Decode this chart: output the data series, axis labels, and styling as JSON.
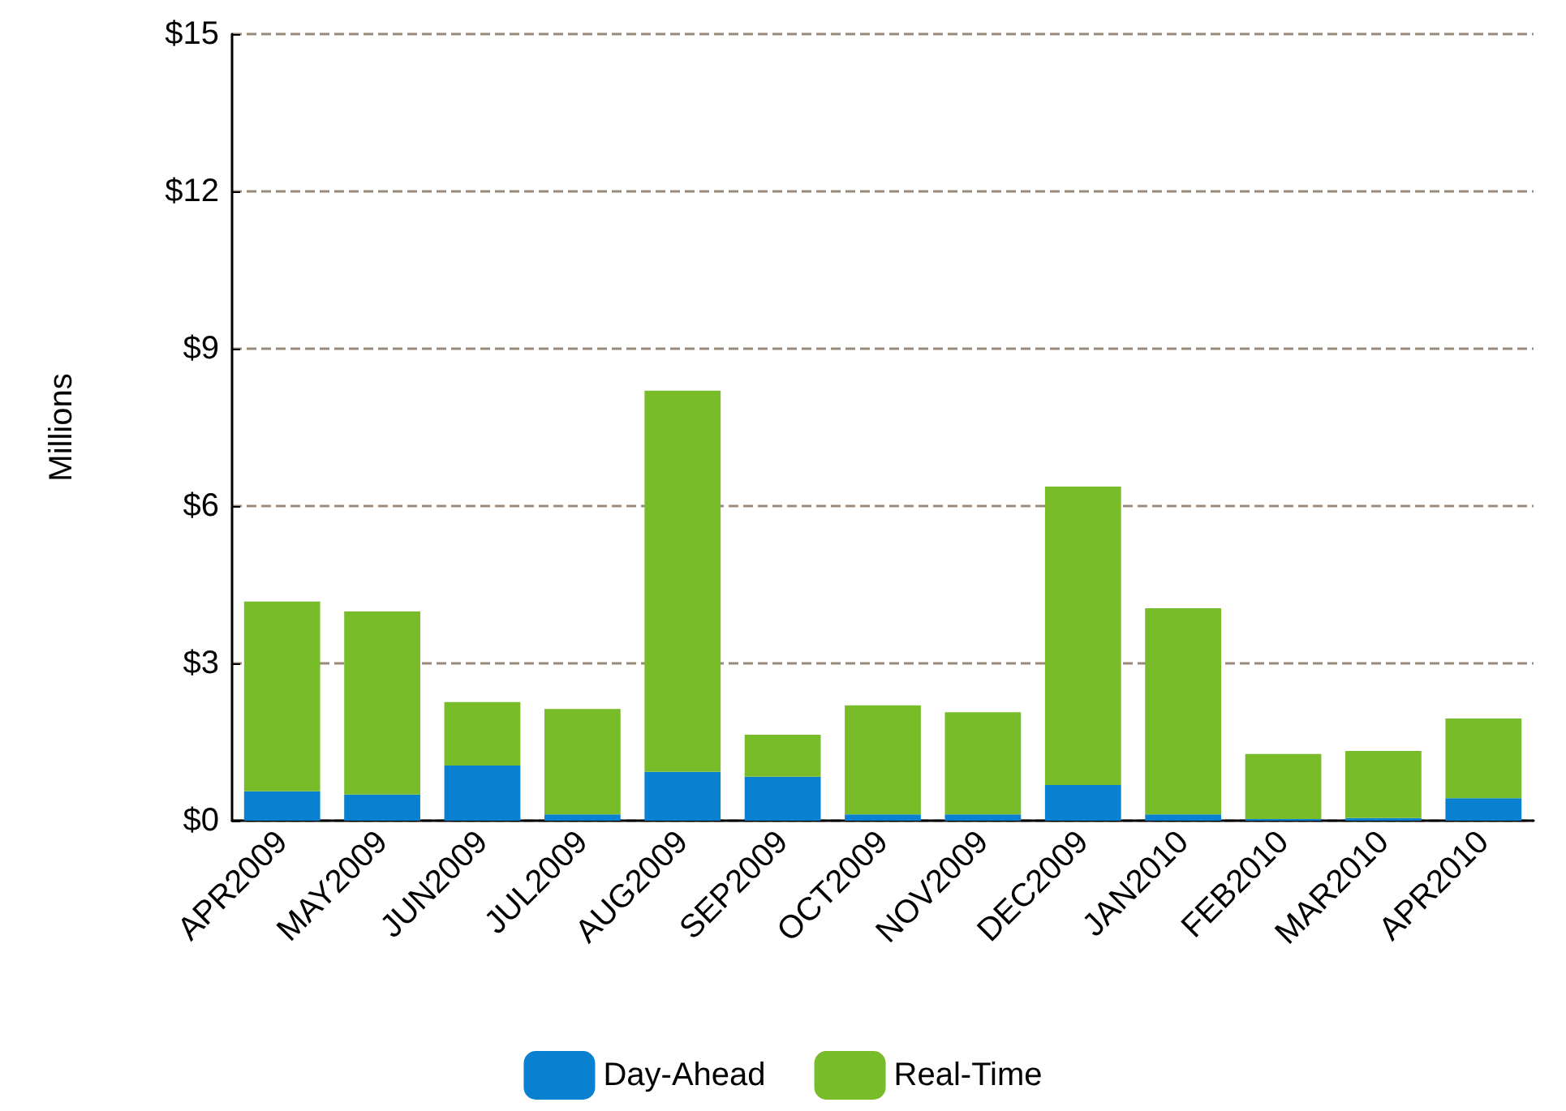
{
  "chart_data": {
    "type": "bar",
    "stacked": true,
    "ylabel": "Millions",
    "categories": [
      "APR2009",
      "MAY2009",
      "JUN2009",
      "JUL2009",
      "AUG2009",
      "SEP2009",
      "OCT2009",
      "NOV2009",
      "DEC2009",
      "JAN2010",
      "FEB2010",
      "MAR2010",
      "APR2010"
    ],
    "series": [
      {
        "name": "Day-Ahead",
        "color": "#0a80d0",
        "values": [
          0.56,
          0.5,
          1.05,
          0.12,
          0.93,
          0.84,
          0.12,
          0.12,
          0.68,
          0.12,
          0.03,
          0.05,
          0.43
        ]
      },
      {
        "name": "Real-Time",
        "color": "#78bc2a",
        "values": [
          3.62,
          3.49,
          1.21,
          2.01,
          7.27,
          0.8,
          2.08,
          1.95,
          5.69,
          3.93,
          1.24,
          1.28,
          1.52
        ]
      }
    ],
    "ylim": [
      0,
      15
    ],
    "yticks": [
      {
        "value": 0,
        "label": "$0"
      },
      {
        "value": 3,
        "label": "$3"
      },
      {
        "value": 6,
        "label": "$6"
      },
      {
        "value": 9,
        "label": "$9"
      },
      {
        "value": 12,
        "label": "$12"
      },
      {
        "value": 15,
        "label": "$15"
      }
    ],
    "grid": "y",
    "legend": "bottom"
  }
}
